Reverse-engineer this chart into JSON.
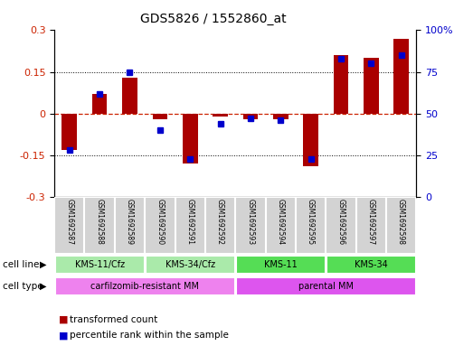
{
  "title": "GDS5826 / 1552860_at",
  "samples": [
    "GSM1692587",
    "GSM1692588",
    "GSM1692589",
    "GSM1692590",
    "GSM1692591",
    "GSM1692592",
    "GSM1692593",
    "GSM1692594",
    "GSM1692595",
    "GSM1692596",
    "GSM1692597",
    "GSM1692598"
  ],
  "transformed_count": [
    -0.13,
    0.07,
    0.13,
    -0.02,
    -0.18,
    -0.01,
    -0.02,
    -0.02,
    -0.19,
    0.21,
    0.2,
    0.27
  ],
  "percentile_rank": [
    28,
    62,
    75,
    40,
    23,
    44,
    47,
    46,
    23,
    83,
    80,
    85
  ],
  "cell_line_groups": [
    {
      "label": "KMS-11/Cfz",
      "start": 0,
      "end": 3,
      "color": "#aaeaaa"
    },
    {
      "label": "KMS-34/Cfz",
      "start": 3,
      "end": 6,
      "color": "#aaeaaa"
    },
    {
      "label": "KMS-11",
      "start": 6,
      "end": 9,
      "color": "#55dd55"
    },
    {
      "label": "KMS-34",
      "start": 9,
      "end": 12,
      "color": "#55dd55"
    }
  ],
  "cell_type_groups": [
    {
      "label": "carfilzomib-resistant MM",
      "start": 0,
      "end": 6,
      "color": "#ee82ee"
    },
    {
      "label": "parental MM",
      "start": 6,
      "end": 12,
      "color": "#dd55ee"
    }
  ],
  "bar_color": "#aa0000",
  "dot_color": "#0000cc",
  "ylim_left": [
    -0.3,
    0.3
  ],
  "ylim_right": [
    0,
    100
  ],
  "yticks_left": [
    -0.3,
    -0.15,
    0,
    0.15,
    0.3
  ],
  "yticks_right": [
    0,
    25,
    50,
    75,
    100
  ],
  "ytick_labels_right": [
    "0",
    "25",
    "50",
    "75",
    "100%"
  ],
  "legend_tc": "transformed count",
  "legend_pr": "percentile rank within the sample",
  "bar_width": 0.5,
  "dot_size": 4,
  "sample_box_color": "#d3d3d3",
  "sample_box_edge_color": "white",
  "hline0_color": "#cc2200",
  "hline_dot_color": "black",
  "left_label_color": "#cc2200",
  "right_label_color": "#0000cc"
}
